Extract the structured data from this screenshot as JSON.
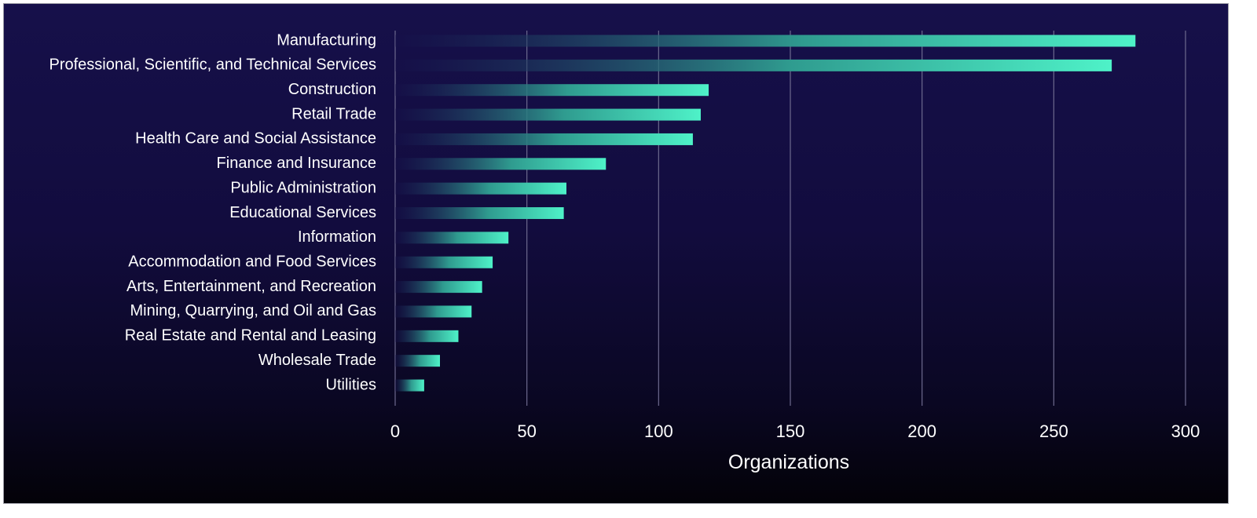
{
  "chart_data": {
    "type": "bar",
    "orientation": "horizontal",
    "title": "",
    "xlabel": "Organizations",
    "ylabel": "",
    "xlim": [
      0,
      300
    ],
    "xticks": [
      0,
      50,
      100,
      150,
      200,
      250,
      300
    ],
    "grid": "vertical",
    "legend": "none",
    "categories": [
      "Manufacturing",
      "Professional, Scientific, and Technical Services",
      "Construction",
      "Retail Trade",
      "Health Care and Social Assistance",
      "Finance and Insurance",
      "Public Administration",
      "Educational Services",
      "Information",
      "Accommodation and Food Services",
      "Arts, Entertainment, and Recreation",
      "Mining, Quarrying, and Oil and Gas",
      "Real Estate and Rental and Leasing",
      "Wholesale Trade",
      "Utilities"
    ],
    "values": [
      281,
      272,
      119,
      116,
      113,
      80,
      65,
      64,
      43,
      37,
      33,
      29,
      24,
      17,
      11
    ],
    "colors": {
      "bar_start": "#16104a",
      "bar_end": "#4ef2c8",
      "gridline": "#6d6a8e",
      "text": "#ffffff"
    }
  }
}
